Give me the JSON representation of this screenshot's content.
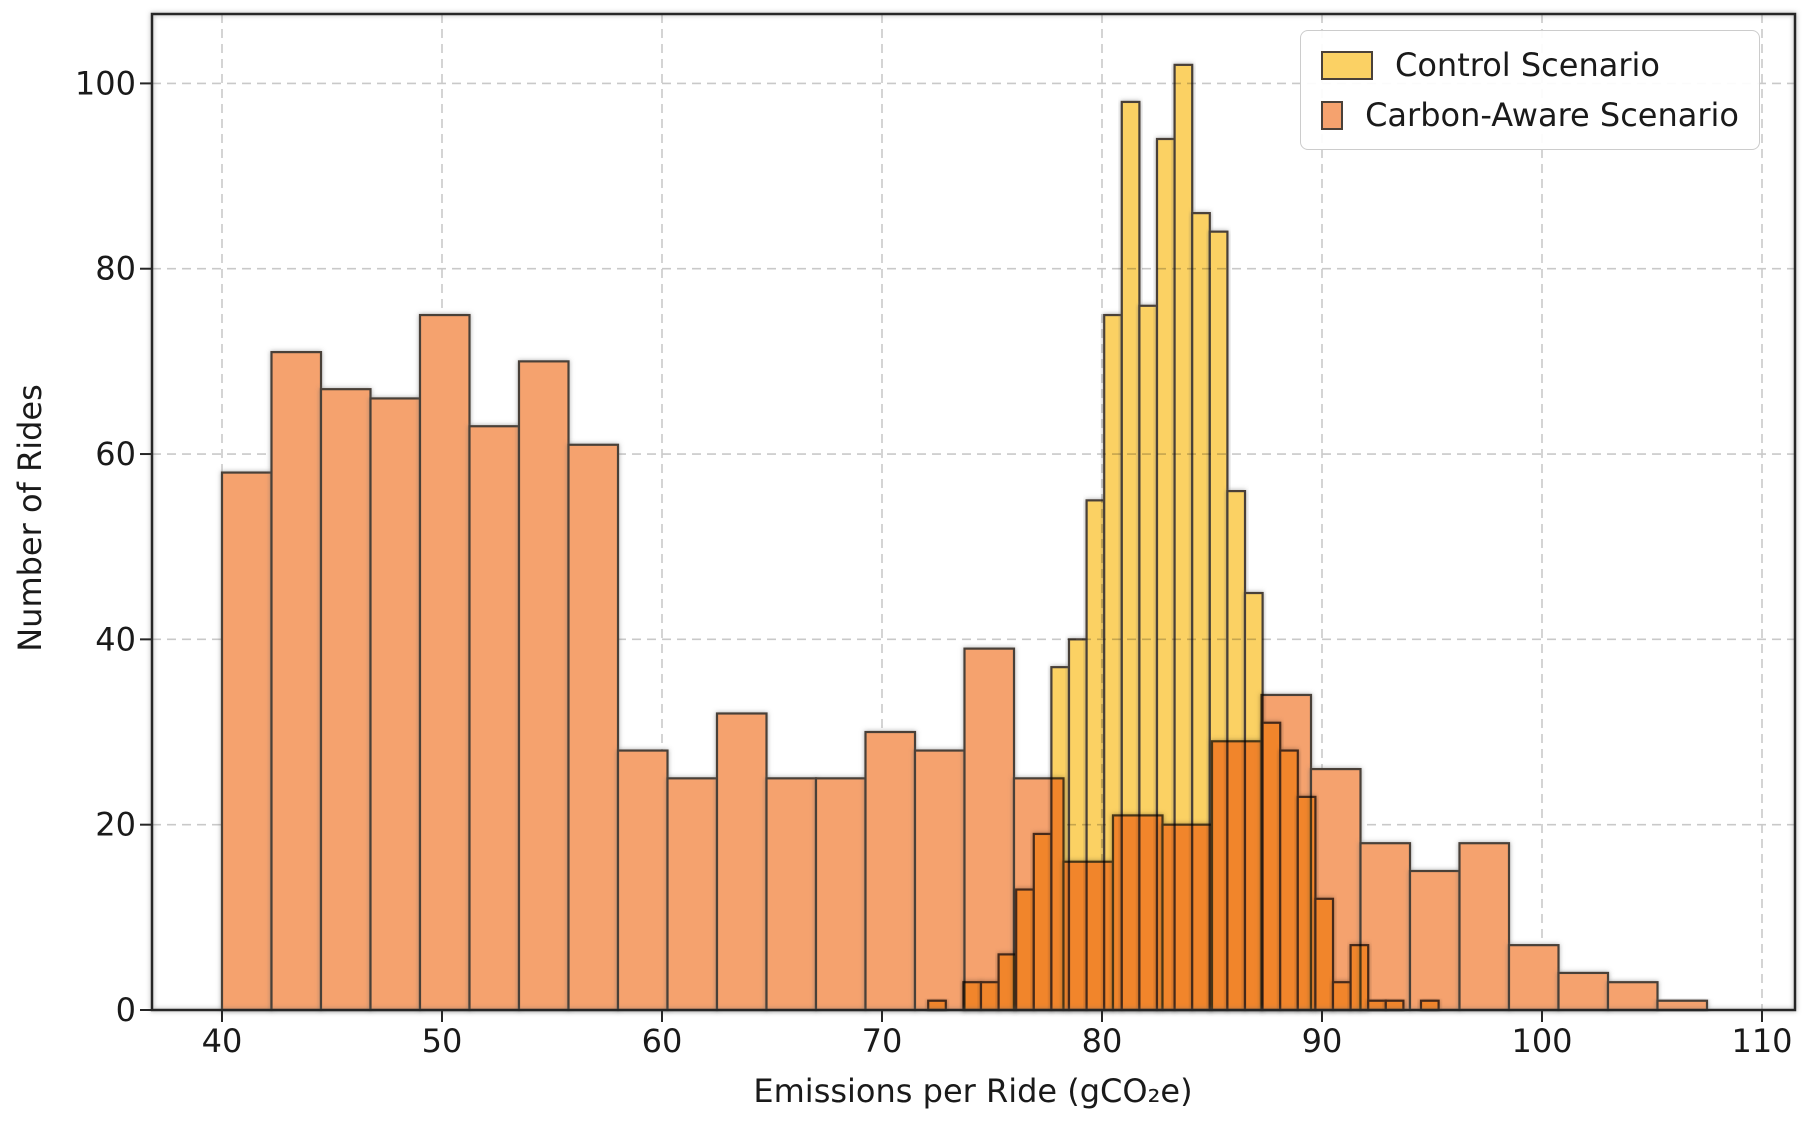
{
  "chart_data": {
    "type": "bar",
    "subtype": "overlaid-histograms",
    "title": "",
    "xlabel": "Emissions per Ride (gCO₂e)",
    "ylabel": "Number of Rides",
    "xlim": [
      36.8,
      111.5
    ],
    "ylim": [
      0,
      107.5
    ],
    "x_ticks": [
      40,
      50,
      60,
      70,
      80,
      90,
      100,
      110
    ],
    "y_ticks": [
      0,
      20,
      40,
      60,
      80,
      100
    ],
    "grid": true,
    "grid_style": "dashed",
    "grid_color": "#c9c9c9",
    "spine_color": "#262626",
    "tick_label_color": "#1a1a1a",
    "legend_position": "upper right",
    "legend": [
      {
        "label": "Control Scenario",
        "color": "#fbd164"
      },
      {
        "label": "Carbon-Aware Scenario",
        "color": "#f5a26e"
      }
    ],
    "series": [
      {
        "name": "Carbon-Aware Scenario",
        "fill": "#f5a26e",
        "edge": "#4a4139",
        "bin_start": 40.0,
        "bin_width": 2.25,
        "counts": [
          58,
          71,
          67,
          66,
          75,
          63,
          70,
          61,
          28,
          25,
          32,
          25,
          25,
          30,
          28,
          39,
          25,
          16,
          21,
          20,
          29,
          34,
          26,
          18,
          15,
          18,
          7,
          4,
          3,
          1
        ]
      },
      {
        "name": "Control Scenario",
        "fill": "#fbd164",
        "edge": "#4a4139",
        "bin_start": 72.1,
        "bin_width": 0.8,
        "counts": [
          1,
          0,
          3,
          3,
          6,
          13,
          19,
          37,
          40,
          55,
          75,
          98,
          76,
          94,
          102,
          86,
          84,
          56,
          45,
          31,
          28,
          23,
          12,
          3,
          7,
          1,
          1,
          0,
          1
        ]
      }
    ]
  }
}
